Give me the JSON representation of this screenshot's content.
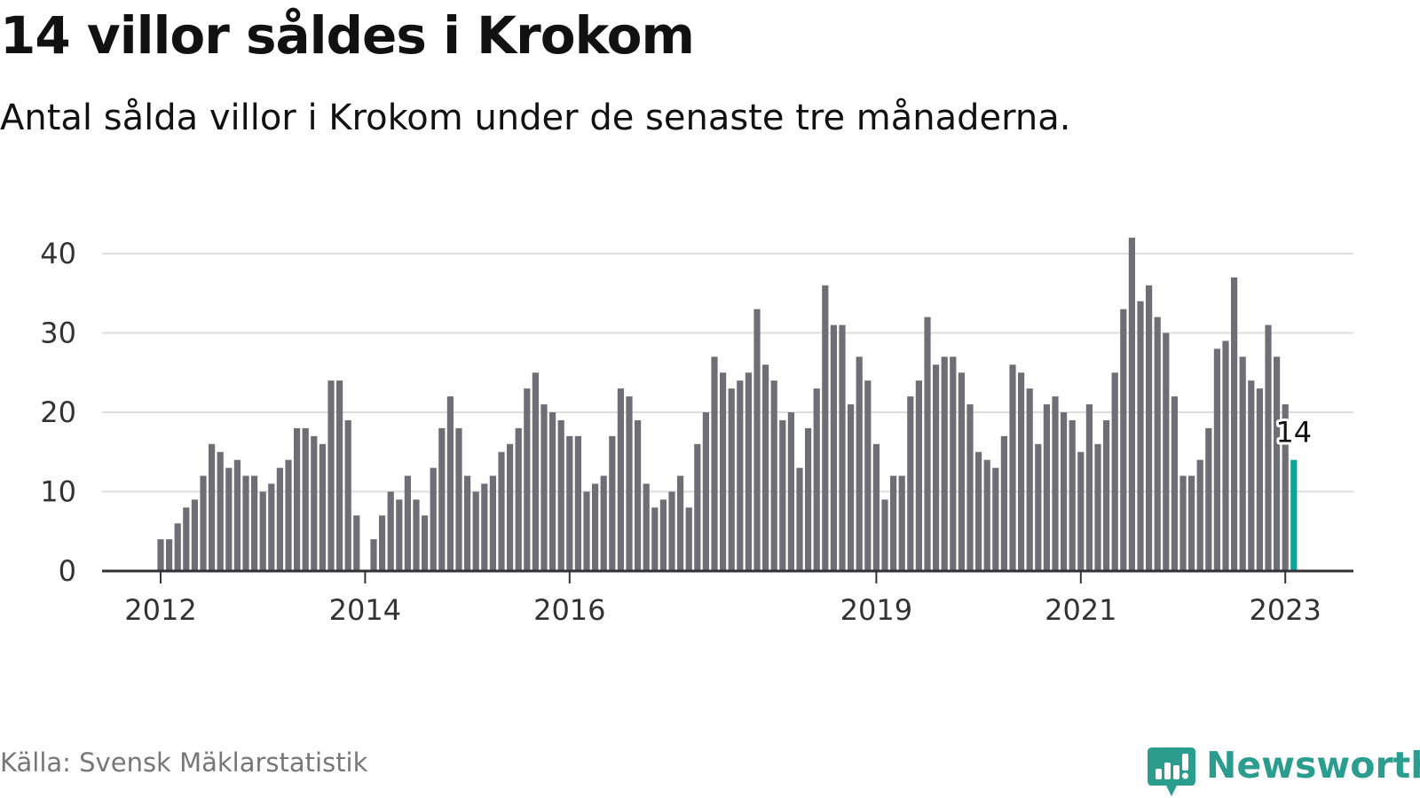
{
  "title": "14 villor såldes i Krokom",
  "subtitle": "Antal sålda villor i Krokom under de senaste tre månaderna.",
  "source": "Källa: Svensk Mäklarstatistik",
  "brand": {
    "name": "Newsworthy",
    "color": "#2a9d8f"
  },
  "colors": {
    "bar": "#6f6e74",
    "highlight": "#10a39a",
    "grid": "#dddddd",
    "axis": "#333333"
  },
  "chart_data": {
    "type": "bar",
    "title": "14 villor såldes i Krokom",
    "xlabel": "",
    "ylabel": "",
    "ylim": [
      0,
      40
    ],
    "grid": true,
    "y_ticks": [
      0,
      10,
      20,
      30,
      40
    ],
    "x_tick_labels": [
      "2012",
      "2014",
      "2016",
      "2019",
      "2021",
      "2023"
    ],
    "x_tick_indices": [
      0,
      24,
      48,
      84,
      108,
      132
    ],
    "highlight": {
      "index": 133,
      "label": "14"
    },
    "categories": [
      "2012-01",
      "2012-02",
      "2012-03",
      "2012-04",
      "2012-05",
      "2012-06",
      "2012-07",
      "2012-08",
      "2012-09",
      "2012-10",
      "2012-11",
      "2012-12",
      "2013-01",
      "2013-02",
      "2013-03",
      "2013-04",
      "2013-05",
      "2013-06",
      "2013-07",
      "2013-08",
      "2013-09",
      "2013-10",
      "2013-11",
      "2013-12",
      "2014-01",
      "2014-02",
      "2014-03",
      "2014-04",
      "2014-05",
      "2014-06",
      "2014-07",
      "2014-08",
      "2014-09",
      "2014-10",
      "2014-11",
      "2014-12",
      "2015-01",
      "2015-02",
      "2015-03",
      "2015-04",
      "2015-05",
      "2015-06",
      "2015-07",
      "2015-08",
      "2015-09",
      "2015-10",
      "2015-11",
      "2015-12",
      "2016-01",
      "2016-02",
      "2016-03",
      "2016-04",
      "2016-05",
      "2016-06",
      "2016-07",
      "2016-08",
      "2016-09",
      "2016-10",
      "2016-11",
      "2016-12",
      "2017-01",
      "2017-02",
      "2017-03",
      "2017-04",
      "2017-05",
      "2017-06",
      "2017-07",
      "2017-08",
      "2017-09",
      "2017-10",
      "2017-11",
      "2017-12",
      "2018-01",
      "2018-02",
      "2018-03",
      "2018-04",
      "2018-05",
      "2018-06",
      "2018-07",
      "2018-08",
      "2018-09",
      "2018-10",
      "2018-11",
      "2018-12",
      "2019-01",
      "2019-02",
      "2019-03",
      "2019-04",
      "2019-05",
      "2019-06",
      "2019-07",
      "2019-08",
      "2019-09",
      "2019-10",
      "2019-11",
      "2019-12",
      "2020-01",
      "2020-02",
      "2020-03",
      "2020-04",
      "2020-05",
      "2020-06",
      "2020-07",
      "2020-08",
      "2020-09",
      "2020-10",
      "2020-11",
      "2020-12",
      "2021-01",
      "2021-02",
      "2021-03",
      "2021-04",
      "2021-05",
      "2021-06",
      "2021-07",
      "2021-08",
      "2021-09",
      "2021-10",
      "2021-11",
      "2021-12",
      "2022-01",
      "2022-02",
      "2022-03",
      "2022-04",
      "2022-05",
      "2022-06",
      "2022-07",
      "2022-08",
      "2022-09",
      "2022-10",
      "2022-11",
      "2022-12",
      "2023-01",
      "2023-02"
    ],
    "values": [
      4,
      4,
      6,
      8,
      9,
      12,
      16,
      15,
      13,
      14,
      12,
      12,
      10,
      11,
      13,
      14,
      18,
      18,
      17,
      16,
      24,
      24,
      19,
      7,
      null,
      4,
      7,
      10,
      9,
      12,
      9,
      7,
      13,
      18,
      22,
      18,
      12,
      10,
      11,
      12,
      15,
      16,
      18,
      23,
      25,
      21,
      20,
      19,
      17,
      17,
      10,
      11,
      12,
      17,
      23,
      22,
      19,
      11,
      8,
      9,
      10,
      12,
      8,
      16,
      20,
      27,
      25,
      23,
      24,
      25,
      33,
      26,
      24,
      19,
      20,
      13,
      18,
      23,
      36,
      31,
      31,
      21,
      27,
      24,
      16,
      9,
      12,
      12,
      22,
      24,
      32,
      26,
      27,
      27,
      25,
      21,
      15,
      14,
      13,
      17,
      26,
      25,
      23,
      16,
      21,
      22,
      20,
      19,
      15,
      21,
      16,
      19,
      25,
      33,
      42,
      34,
      36,
      32,
      30,
      22,
      12,
      12,
      14,
      18,
      28,
      29,
      37,
      27,
      24,
      23,
      31,
      27,
      21,
      14
    ]
  }
}
